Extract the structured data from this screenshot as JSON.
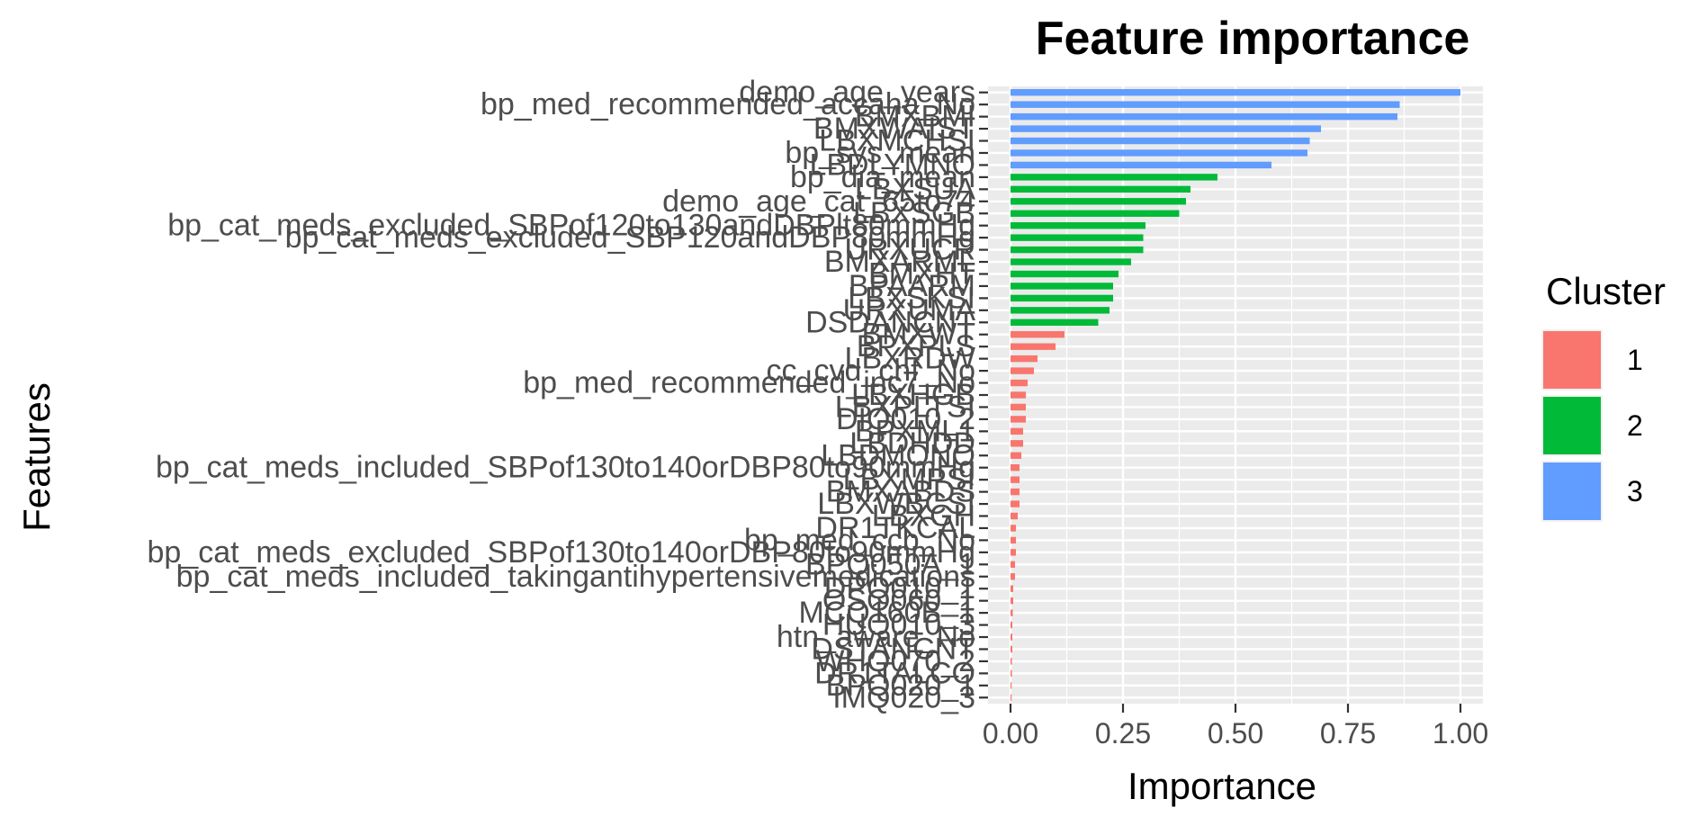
{
  "chart_data": {
    "type": "bar",
    "orientation": "horizontal",
    "title": "Feature importance",
    "xlabel": "Importance",
    "ylabel": "Features",
    "xlim": [
      -0.05,
      1.05
    ],
    "xticks": [
      0,
      0.25,
      0.5,
      0.75,
      1
    ],
    "xtick_labels": [
      "0.00",
      "0.25",
      "0.50",
      "0.75",
      "1.00"
    ],
    "grid": true,
    "legend": {
      "title": "Cluster",
      "position": "right",
      "entries": [
        {
          "label": "1",
          "color": "#F8766D"
        },
        {
          "label": "2",
          "color": "#00BA38"
        },
        {
          "label": "3",
          "color": "#619CFF"
        }
      ]
    },
    "features": [
      {
        "name": "demo_age_years",
        "value": 1.0,
        "cluster": "3"
      },
      {
        "name": "bp_med_recommended_accaha_No",
        "value": 0.865,
        "cluster": "3"
      },
      {
        "name": "BMXBMI",
        "value": 0.86,
        "cluster": "3"
      },
      {
        "name": "BMXWAIST",
        "value": 0.69,
        "cluster": "3"
      },
      {
        "name": "LBXMCHSI",
        "value": 0.665,
        "cluster": "3"
      },
      {
        "name": "bp_sys_mean",
        "value": 0.66,
        "cluster": "3"
      },
      {
        "name": "LBDLYMNO",
        "value": 0.58,
        "cluster": "3"
      },
      {
        "name": "bp_dia_mean",
        "value": 0.46,
        "cluster": "2"
      },
      {
        "name": "LBXSUA",
        "value": 0.4,
        "cluster": "2"
      },
      {
        "name": "demo_age_cat_65to74",
        "value": 0.39,
        "cluster": "2"
      },
      {
        "name": "LBXSGB",
        "value": 0.375,
        "cluster": "2"
      },
      {
        "name": "bp_cat_meds_excluded_SBPof120to130andDBPlt80mmHg",
        "value": 0.3,
        "cluster": "2"
      },
      {
        "name": "bp_cat_meds_excluded_SBP120andDBP80mmHg",
        "value": 0.295,
        "cluster": "2"
      },
      {
        "name": "URXUCR",
        "value": 0.295,
        "cluster": "2"
      },
      {
        "name": "BMXARML",
        "value": 0.268,
        "cluster": "2"
      },
      {
        "name": "BMXHT",
        "value": 0.24,
        "cluster": "2"
      },
      {
        "name": "BPAARM",
        "value": 0.228,
        "cluster": "2"
      },
      {
        "name": "LBXSKSI",
        "value": 0.228,
        "cluster": "2"
      },
      {
        "name": "URXUMA",
        "value": 0.22,
        "cluster": "2"
      },
      {
        "name": "DSDANCNT",
        "value": 0.195,
        "cluster": "2"
      },
      {
        "name": "BMXWT",
        "value": 0.12,
        "cluster": "1"
      },
      {
        "name": "BPXPLS",
        "value": 0.1,
        "cluster": "1"
      },
      {
        "name": "LBXRDW",
        "value": 0.06,
        "cluster": "1"
      },
      {
        "name": "cc_cvd_chf_No",
        "value": 0.052,
        "cluster": "1"
      },
      {
        "name": "bp_med_recommended_jnc7_No",
        "value": 0.038,
        "cluster": "1"
      },
      {
        "name": "LBXHGB",
        "value": 0.034,
        "cluster": "1"
      },
      {
        "name": "LBXPLTSI",
        "value": 0.034,
        "cluster": "1"
      },
      {
        "name": "DIQ010_2",
        "value": 0.034,
        "cluster": "1"
      },
      {
        "name": "BPXML1",
        "value": 0.028,
        "cluster": "1"
      },
      {
        "name": "LBDHDD",
        "value": 0.028,
        "cluster": "1"
      },
      {
        "name": "LBDMONO",
        "value": 0.024,
        "cluster": "1"
      },
      {
        "name": "bp_cat_meds_included_SBPof130to140orDBP80to90mmHg",
        "value": 0.02,
        "cluster": "1"
      },
      {
        "name": "LBXMPSI",
        "value": 0.02,
        "cluster": "1"
      },
      {
        "name": "BMXABDS",
        "value": 0.02,
        "cluster": "1"
      },
      {
        "name": "LBXWBCSI",
        "value": 0.02,
        "cluster": "1"
      },
      {
        "name": "LBXGH",
        "value": 0.016,
        "cluster": "1"
      },
      {
        "name": "DR1TKCAL",
        "value": 0.012,
        "cluster": "1"
      },
      {
        "name": "bp_med_ccb_No",
        "value": 0.012,
        "cluster": "1"
      },
      {
        "name": "bp_cat_meds_excluded_SBPof130to140orDBP80to90mmHg",
        "value": 0.012,
        "cluster": "1"
      },
      {
        "name": "BPQ050A_1",
        "value": 0.01,
        "cluster": "1"
      },
      {
        "name": "bp_cat_meds_included_takingantihypertensivemedications",
        "value": 0.01,
        "cluster": "1"
      },
      {
        "name": "DPQ010_1",
        "value": 0.006,
        "cluster": "1"
      },
      {
        "name": "OSQ060_1",
        "value": 0.006,
        "cluster": "1"
      },
      {
        "name": "MCQ160B_1",
        "value": 0.005,
        "cluster": "1"
      },
      {
        "name": "HUQ010_3",
        "value": 0.004,
        "cluster": "1"
      },
      {
        "name": "htn_aware_No",
        "value": 0.004,
        "cluster": "1"
      },
      {
        "name": "DSTANCNT",
        "value": 0.004,
        "cluster": "1"
      },
      {
        "name": "WHQ070_2",
        "value": 0.003,
        "cluster": "1"
      },
      {
        "name": "DR1TALCO",
        "value": 0.003,
        "cluster": "1"
      },
      {
        "name": "BPQ020_1",
        "value": 0.002,
        "cluster": "1"
      },
      {
        "name": "IMQ020_3",
        "value": 0.002,
        "cluster": "1"
      }
    ]
  }
}
